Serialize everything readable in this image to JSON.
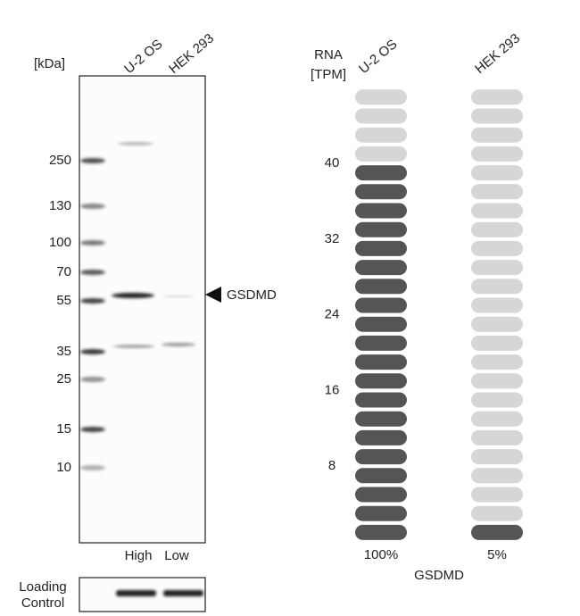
{
  "western_blot": {
    "unit_label": "[kDa]",
    "lanes": [
      "U-2 OS",
      "HEK 293"
    ],
    "markers": [
      250,
      130,
      100,
      70,
      55,
      35,
      25,
      15,
      10
    ],
    "target": "GSDMD",
    "lane_levels": [
      "High",
      "Low"
    ],
    "loading_control": [
      "Loading",
      "Control"
    ]
  },
  "rna": {
    "axis_label": [
      "RNA",
      "[TPM]"
    ],
    "ticks": [
      8,
      16,
      24,
      32,
      40
    ],
    "pill_step": 2,
    "pill_count": 24,
    "gene": "GSDMD",
    "columns": [
      {
        "name": "U-2 OS",
        "filled": 20,
        "percent_label": "100%"
      },
      {
        "name": "HEK 293",
        "filled": 1,
        "percent_label": "5%"
      }
    ],
    "colors": {
      "filled": "#555555",
      "empty": "#d6d6d6"
    }
  }
}
